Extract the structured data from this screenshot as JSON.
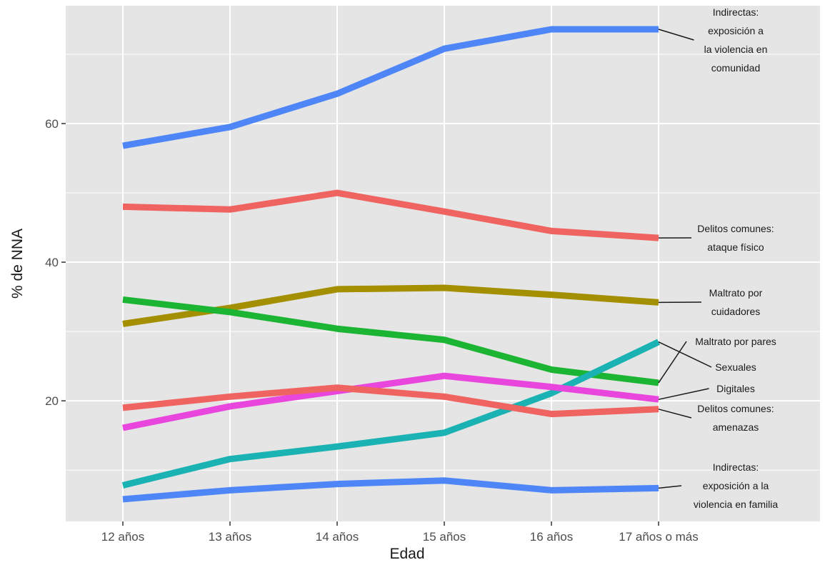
{
  "chart_data": {
    "type": "line",
    "title": "",
    "xlabel": "Edad",
    "ylabel": "% de NNA",
    "categories": [
      "12 años",
      "13 años",
      "14 años",
      "15 años",
      "16 años",
      "17 años o más"
    ],
    "yticks": [
      20,
      40,
      60
    ],
    "ylim": [
      2.6,
      77.0
    ],
    "grid": true,
    "legend": "direct labels at right end of lines",
    "series": [
      {
        "name": "Indirectas: exposición a la violencia en comunidad",
        "label_lines": [
          "Indirectas:",
          "exposición a",
          "la violencia en",
          "comunidad"
        ],
        "color": "#4f86f7",
        "values": [
          56.8,
          59.5,
          64.3,
          70.8,
          73.6,
          73.6
        ]
      },
      {
        "name": "Delitos comunes: ataque físico",
        "label_lines": [
          "Delitos comunes:",
          "ataque físico"
        ],
        "color": "#ef6461",
        "values": [
          48.0,
          47.6,
          50.0,
          47.3,
          44.5,
          43.5
        ]
      },
      {
        "name": "Maltrato por cuidadores",
        "label_lines": [
          "Maltrato por",
          "cuidadores"
        ],
        "color": "#a38f00",
        "values": [
          31.1,
          33.4,
          36.1,
          36.3,
          35.3,
          34.2
        ]
      },
      {
        "name": "Maltrato por pares",
        "label_lines": [
          "Maltrato por pares"
        ],
        "color": "#1cb533",
        "values": [
          34.6,
          32.8,
          30.4,
          28.8,
          24.5,
          22.6
        ]
      },
      {
        "name": "Sexuales",
        "label_lines": [
          "Sexuales"
        ],
        "color": "#1ab2b2",
        "values": [
          7.8,
          11.6,
          13.4,
          15.4,
          21.1,
          28.5
        ]
      },
      {
        "name": "Digitales",
        "label_lines": [
          "Digitales"
        ],
        "color": "#e846dc",
        "values": [
          16.1,
          19.2,
          21.4,
          23.6,
          22.0,
          20.2
        ]
      },
      {
        "name": "Delitos comunes: amenazas",
        "label_lines": [
          "Delitos comunes:",
          "amenazas"
        ],
        "color": "#ef6461",
        "values": [
          19.0,
          20.6,
          21.9,
          20.6,
          18.1,
          18.8
        ]
      },
      {
        "name": "Indirectas: exposición a la violencia en familia",
        "label_lines": [
          "Indirectas:",
          "exposición a la",
          "violencia en familia"
        ],
        "color": "#4f86f7",
        "values": [
          5.8,
          7.1,
          8.0,
          8.5,
          7.1,
          7.4
        ]
      }
    ]
  }
}
